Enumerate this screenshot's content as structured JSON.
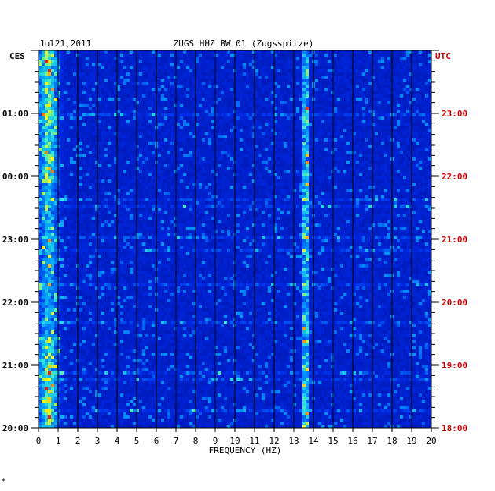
{
  "chart_data": {
    "type": "heatmap",
    "title": "ZUGS HHZ BW 01 (Zugsspitze)",
    "date": "Jul21,2011",
    "xlabel": "FREQUENCY (HZ)",
    "xlim": [
      0,
      20
    ],
    "x_ticks": [
      "0",
      "1",
      "2",
      "3",
      "4",
      "5",
      "6",
      "7",
      "8",
      "9",
      "10",
      "11",
      "12",
      "13",
      "14",
      "15",
      "16",
      "17",
      "18",
      "19",
      "20"
    ],
    "left_axis_label": "CES",
    "left_ticks": [
      "01:00",
      "00:00",
      "23:00",
      "22:00",
      "21:00",
      "20:00"
    ],
    "right_axis_label": "UTC",
    "right_ticks": [
      "23:00",
      "22:00",
      "21:00",
      "20:00",
      "19:00",
      "18:00"
    ],
    "time_span_hours": 6,
    "dominant_bands_hz": [
      0.5,
      13.6
    ],
    "colors": {
      "background_low": "#0018b0",
      "mid": "#00a0ff",
      "high": "#ffff00",
      "peak": "#ff2000",
      "utc_label": "#cc0000"
    }
  },
  "footer_mark": "*"
}
